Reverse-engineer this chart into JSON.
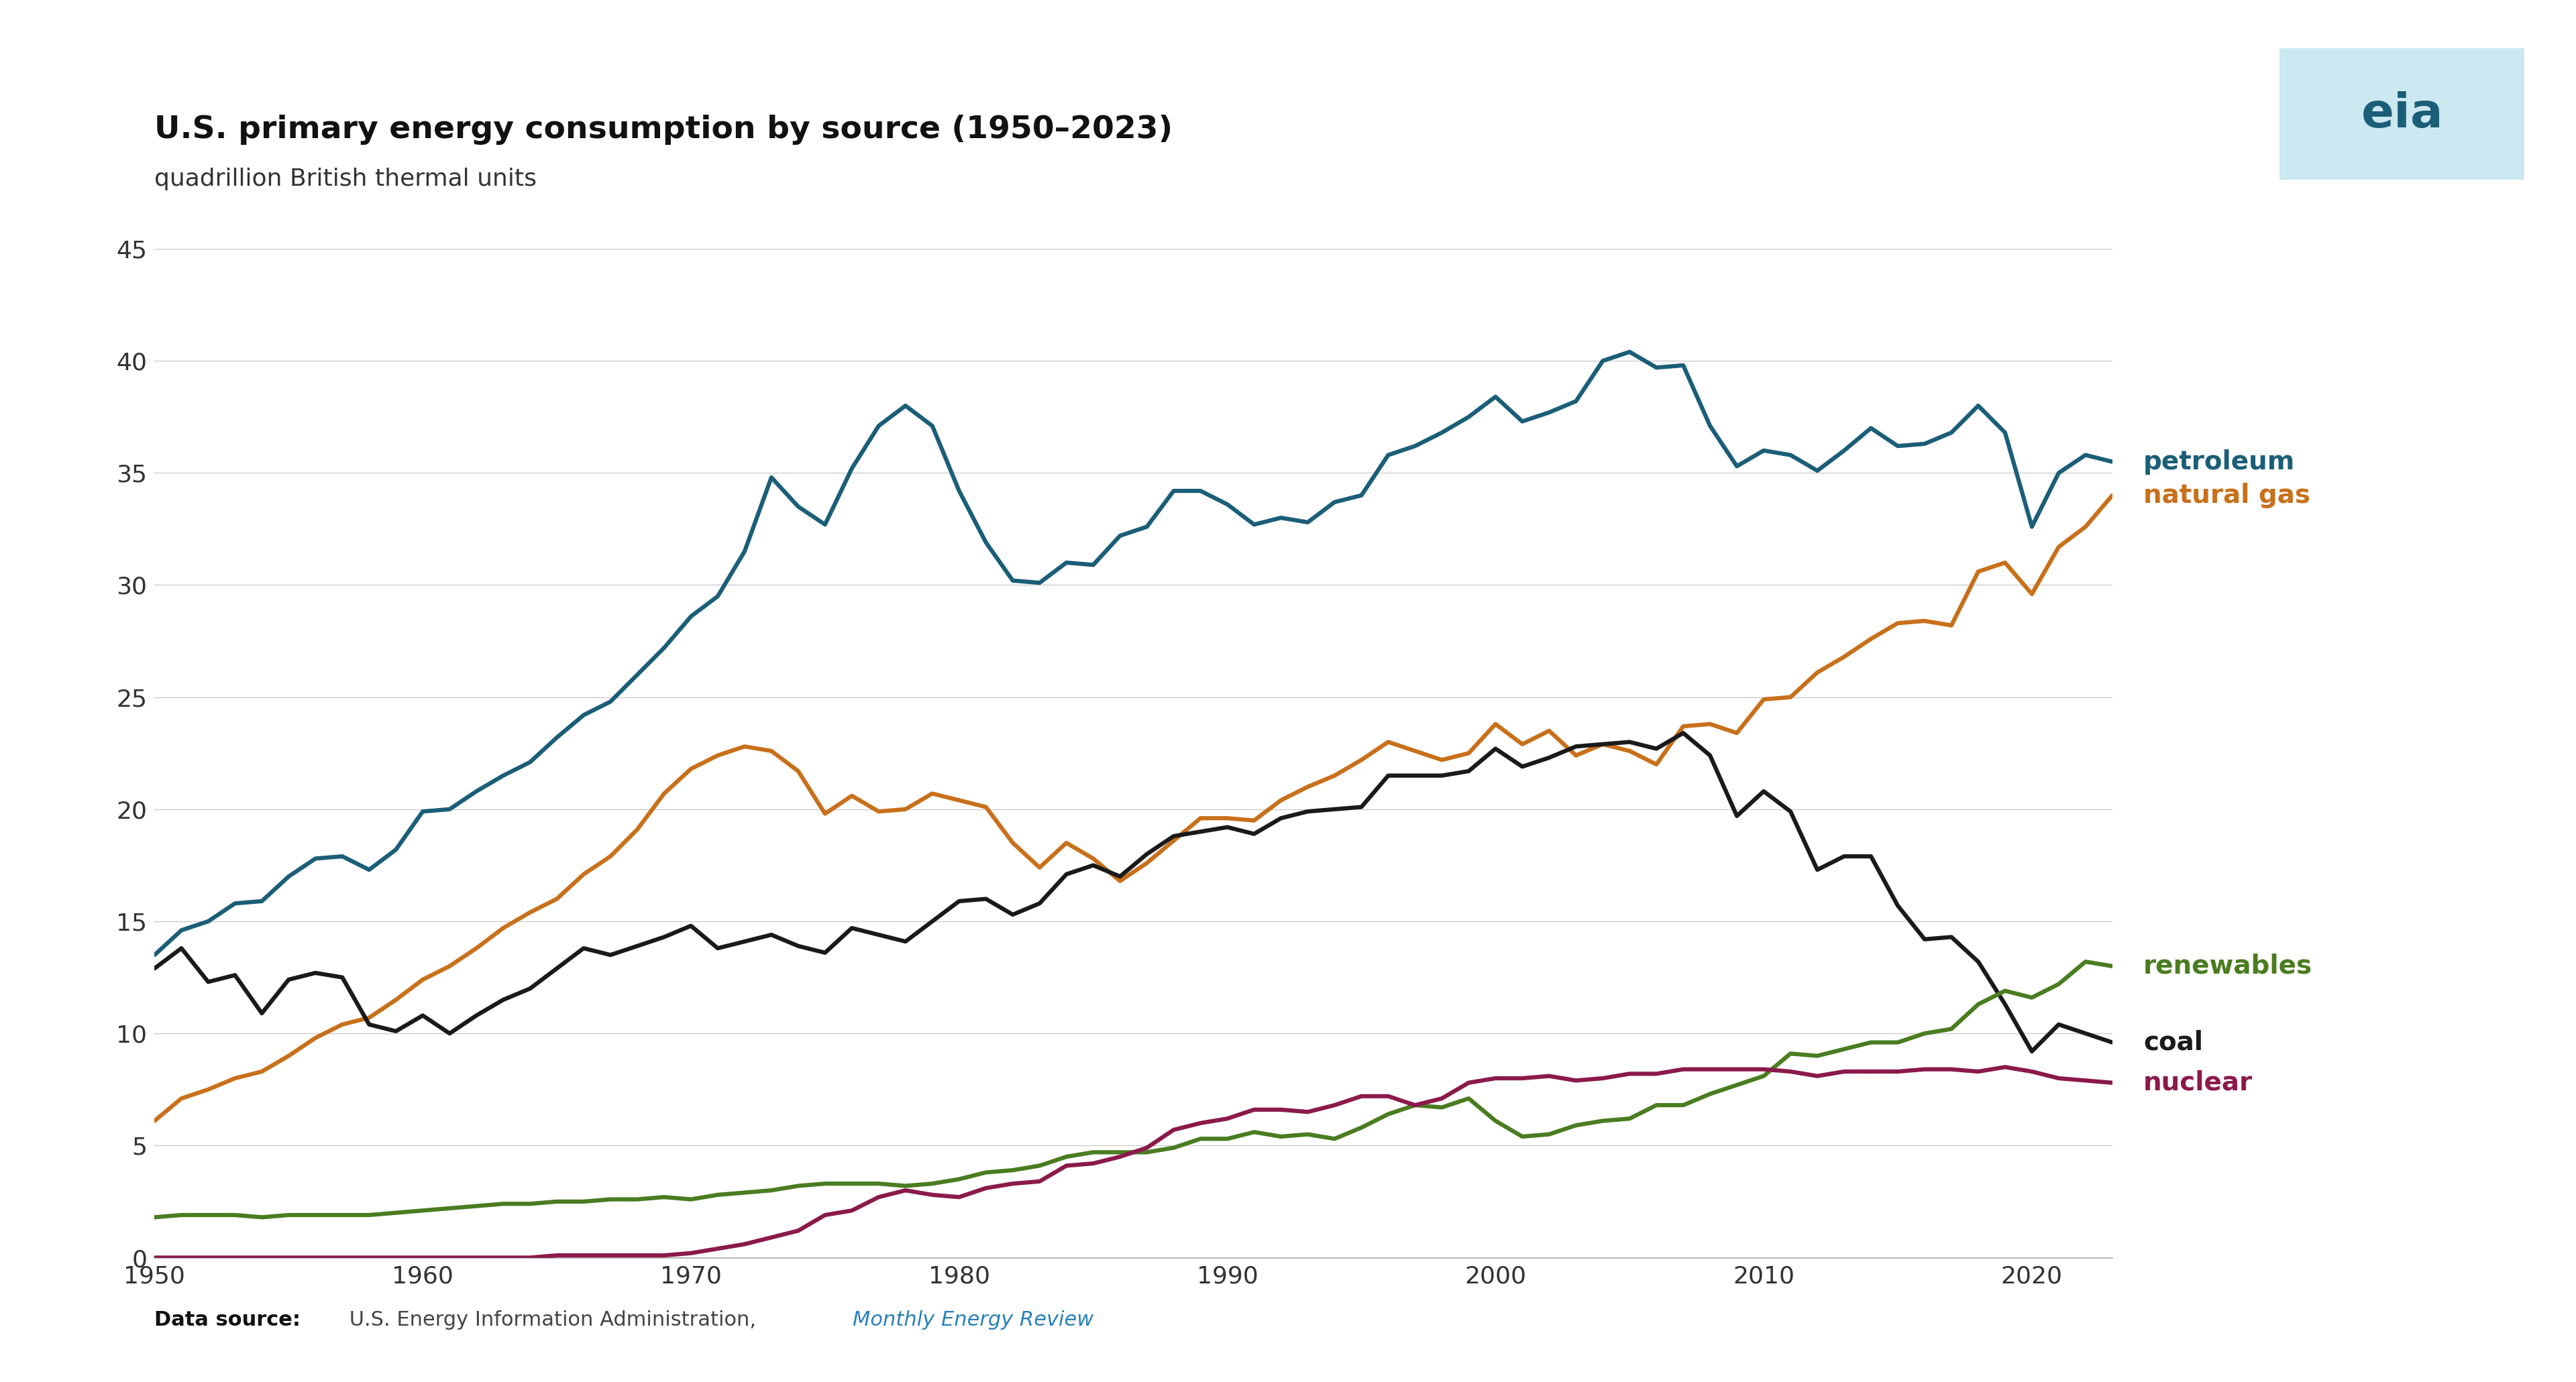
{
  "title": "U.S. primary energy consumption by source (1950–2023)",
  "subtitle": "quadrillion British thermal units",
  "ylim": [
    0,
    45
  ],
  "yticks": [
    0,
    5,
    10,
    15,
    20,
    25,
    30,
    35,
    40,
    45
  ],
  "xlim": [
    1950,
    2023
  ],
  "xticks": [
    1950,
    1960,
    1970,
    1980,
    1990,
    2000,
    2010,
    2020
  ],
  "bg_color": "#ffffff",
  "grid_color": "#cccccc",
  "colors": {
    "petroleum": "#1b5e78",
    "natural_gas": "#c8701a",
    "coal": "#1a1a1a",
    "renewables": "#4a7c20",
    "nuclear": "#8b1a4a"
  },
  "petroleum": {
    "years": [
      1950,
      1951,
      1952,
      1953,
      1954,
      1955,
      1956,
      1957,
      1958,
      1959,
      1960,
      1961,
      1962,
      1963,
      1964,
      1965,
      1966,
      1967,
      1968,
      1969,
      1970,
      1971,
      1972,
      1973,
      1974,
      1975,
      1976,
      1977,
      1978,
      1979,
      1980,
      1981,
      1982,
      1983,
      1984,
      1985,
      1986,
      1987,
      1988,
      1989,
      1990,
      1991,
      1992,
      1993,
      1994,
      1995,
      1996,
      1997,
      1998,
      1999,
      2000,
      2001,
      2002,
      2003,
      2004,
      2005,
      2006,
      2007,
      2008,
      2009,
      2010,
      2011,
      2012,
      2013,
      2014,
      2015,
      2016,
      2017,
      2018,
      2019,
      2020,
      2021,
      2022,
      2023
    ],
    "values": [
      13.5,
      14.6,
      15.0,
      15.8,
      15.9,
      17.0,
      17.8,
      17.9,
      17.3,
      18.2,
      19.9,
      20.0,
      20.8,
      21.5,
      22.1,
      23.2,
      24.2,
      24.8,
      26.0,
      27.2,
      28.6,
      29.5,
      31.5,
      34.8,
      33.5,
      32.7,
      35.2,
      37.1,
      38.0,
      37.1,
      34.2,
      31.9,
      30.2,
      30.1,
      31.0,
      30.9,
      32.2,
      32.6,
      34.2,
      34.2,
      33.6,
      32.7,
      33.0,
      32.8,
      33.7,
      34.0,
      35.8,
      36.2,
      36.8,
      37.5,
      38.4,
      37.3,
      37.7,
      38.2,
      40.0,
      40.4,
      39.7,
      39.8,
      37.1,
      35.3,
      36.0,
      35.8,
      35.1,
      36.0,
      37.0,
      36.2,
      36.3,
      36.8,
      38.0,
      36.8,
      32.6,
      35.0,
      35.8,
      35.5
    ]
  },
  "natural_gas": {
    "years": [
      1950,
      1951,
      1952,
      1953,
      1954,
      1955,
      1956,
      1957,
      1958,
      1959,
      1960,
      1961,
      1962,
      1963,
      1964,
      1965,
      1966,
      1967,
      1968,
      1969,
      1970,
      1971,
      1972,
      1973,
      1974,
      1975,
      1976,
      1977,
      1978,
      1979,
      1980,
      1981,
      1982,
      1983,
      1984,
      1985,
      1986,
      1987,
      1988,
      1989,
      1990,
      1991,
      1992,
      1993,
      1994,
      1995,
      1996,
      1997,
      1998,
      1999,
      2000,
      2001,
      2002,
      2003,
      2004,
      2005,
      2006,
      2007,
      2008,
      2009,
      2010,
      2011,
      2012,
      2013,
      2014,
      2015,
      2016,
      2017,
      2018,
      2019,
      2020,
      2021,
      2022,
      2023
    ],
    "values": [
      6.1,
      7.1,
      7.5,
      8.0,
      8.3,
      9.0,
      9.8,
      10.4,
      10.7,
      11.5,
      12.4,
      13.0,
      13.8,
      14.7,
      15.4,
      16.0,
      17.1,
      17.9,
      19.1,
      20.7,
      21.8,
      22.4,
      22.8,
      22.6,
      21.7,
      19.8,
      20.6,
      19.9,
      20.0,
      20.7,
      20.4,
      20.1,
      18.5,
      17.4,
      18.5,
      17.8,
      16.8,
      17.6,
      18.6,
      19.6,
      19.6,
      19.5,
      20.4,
      21.0,
      21.5,
      22.2,
      23.0,
      22.6,
      22.2,
      22.5,
      23.8,
      22.9,
      23.5,
      22.4,
      22.9,
      22.6,
      22.0,
      23.7,
      23.8,
      23.4,
      24.9,
      25.0,
      26.1,
      26.8,
      27.6,
      28.3,
      28.4,
      28.2,
      30.6,
      31.0,
      29.6,
      31.7,
      32.6,
      34.0
    ]
  },
  "coal": {
    "years": [
      1950,
      1951,
      1952,
      1953,
      1954,
      1955,
      1956,
      1957,
      1958,
      1959,
      1960,
      1961,
      1962,
      1963,
      1964,
      1965,
      1966,
      1967,
      1968,
      1969,
      1970,
      1971,
      1972,
      1973,
      1974,
      1975,
      1976,
      1977,
      1978,
      1979,
      1980,
      1981,
      1982,
      1983,
      1984,
      1985,
      1986,
      1987,
      1988,
      1989,
      1990,
      1991,
      1992,
      1993,
      1994,
      1995,
      1996,
      1997,
      1998,
      1999,
      2000,
      2001,
      2002,
      2003,
      2004,
      2005,
      2006,
      2007,
      2008,
      2009,
      2010,
      2011,
      2012,
      2013,
      2014,
      2015,
      2016,
      2017,
      2018,
      2019,
      2020,
      2021,
      2022,
      2023
    ],
    "values": [
      12.9,
      13.8,
      12.3,
      12.6,
      10.9,
      12.4,
      12.7,
      12.5,
      10.4,
      10.1,
      10.8,
      10.0,
      10.8,
      11.5,
      12.0,
      12.9,
      13.8,
      13.5,
      13.9,
      14.3,
      14.8,
      13.8,
      14.1,
      14.4,
      13.9,
      13.6,
      14.7,
      14.4,
      14.1,
      15.0,
      15.9,
      16.0,
      15.3,
      15.8,
      17.1,
      17.5,
      17.0,
      18.0,
      18.8,
      19.0,
      19.2,
      18.9,
      19.6,
      19.9,
      20.0,
      20.1,
      21.5,
      21.5,
      21.5,
      21.7,
      22.7,
      21.9,
      22.3,
      22.8,
      22.9,
      23.0,
      22.7,
      23.4,
      22.4,
      19.7,
      20.8,
      19.9,
      17.3,
      17.9,
      17.9,
      15.7,
      14.2,
      14.3,
      13.2,
      11.3,
      9.2,
      10.4,
      10.0,
      9.6
    ]
  },
  "renewables": {
    "years": [
      1950,
      1951,
      1952,
      1953,
      1954,
      1955,
      1956,
      1957,
      1958,
      1959,
      1960,
      1961,
      1962,
      1963,
      1964,
      1965,
      1966,
      1967,
      1968,
      1969,
      1970,
      1971,
      1972,
      1973,
      1974,
      1975,
      1976,
      1977,
      1978,
      1979,
      1980,
      1981,
      1982,
      1983,
      1984,
      1985,
      1986,
      1987,
      1988,
      1989,
      1990,
      1991,
      1992,
      1993,
      1994,
      1995,
      1996,
      1997,
      1998,
      1999,
      2000,
      2001,
      2002,
      2003,
      2004,
      2005,
      2006,
      2007,
      2008,
      2009,
      2010,
      2011,
      2012,
      2013,
      2014,
      2015,
      2016,
      2017,
      2018,
      2019,
      2020,
      2021,
      2022,
      2023
    ],
    "values": [
      1.8,
      1.9,
      1.9,
      1.9,
      1.8,
      1.9,
      1.9,
      1.9,
      1.9,
      2.0,
      2.1,
      2.2,
      2.3,
      2.4,
      2.4,
      2.5,
      2.5,
      2.6,
      2.6,
      2.7,
      2.6,
      2.8,
      2.9,
      3.0,
      3.2,
      3.3,
      3.3,
      3.3,
      3.2,
      3.3,
      3.5,
      3.8,
      3.9,
      4.1,
      4.5,
      4.7,
      4.7,
      4.7,
      4.9,
      5.3,
      5.3,
      5.6,
      5.4,
      5.5,
      5.3,
      5.8,
      6.4,
      6.8,
      6.7,
      7.1,
      6.1,
      5.4,
      5.5,
      5.9,
      6.1,
      6.2,
      6.8,
      6.8,
      7.3,
      7.7,
      8.1,
      9.1,
      9.0,
      9.3,
      9.6,
      9.6,
      10.0,
      10.2,
      11.3,
      11.9,
      11.6,
      12.2,
      13.2,
      13.0
    ]
  },
  "nuclear": {
    "years": [
      1950,
      1951,
      1952,
      1953,
      1954,
      1955,
      1956,
      1957,
      1958,
      1959,
      1960,
      1961,
      1962,
      1963,
      1964,
      1965,
      1966,
      1967,
      1968,
      1969,
      1970,
      1971,
      1972,
      1973,
      1974,
      1975,
      1976,
      1977,
      1978,
      1979,
      1980,
      1981,
      1982,
      1983,
      1984,
      1985,
      1986,
      1987,
      1988,
      1989,
      1990,
      1991,
      1992,
      1993,
      1994,
      1995,
      1996,
      1997,
      1998,
      1999,
      2000,
      2001,
      2002,
      2003,
      2004,
      2005,
      2006,
      2007,
      2008,
      2009,
      2010,
      2011,
      2012,
      2013,
      2014,
      2015,
      2016,
      2017,
      2018,
      2019,
      2020,
      2021,
      2022,
      2023
    ],
    "values": [
      0.0,
      0.0,
      0.0,
      0.0,
      0.0,
      0.0,
      0.0,
      0.0,
      0.0,
      0.0,
      0.0,
      0.0,
      0.0,
      0.0,
      0.0,
      0.1,
      0.1,
      0.1,
      0.1,
      0.1,
      0.2,
      0.4,
      0.6,
      0.9,
      1.2,
      1.9,
      2.1,
      2.7,
      3.0,
      2.8,
      2.7,
      3.1,
      3.3,
      3.4,
      4.1,
      4.2,
      4.5,
      4.9,
      5.7,
      6.0,
      6.2,
      6.6,
      6.6,
      6.5,
      6.8,
      7.2,
      7.2,
      6.8,
      7.1,
      7.8,
      8.0,
      8.0,
      8.1,
      7.9,
      8.0,
      8.2,
      8.2,
      8.4,
      8.4,
      8.4,
      8.4,
      8.3,
      8.1,
      8.3,
      8.3,
      8.3,
      8.4,
      8.4,
      8.3,
      8.5,
      8.3,
      8.0,
      7.9,
      7.8
    ]
  },
  "legend_items": [
    {
      "label": "petroleum",
      "key": "petroleum",
      "y_data": 35.5
    },
    {
      "label": "natural gas",
      "key": "natural_gas",
      "y_data": 34.0
    },
    {
      "label": "renewables",
      "key": "renewables",
      "y_data": 13.0
    },
    {
      "label": "coal",
      "key": "coal",
      "y_data": 9.6
    },
    {
      "label": "nuclear",
      "key": "nuclear",
      "y_data": 7.8
    }
  ],
  "datasource_bold": "Data source:",
  "datasource_text": " U.S. Energy Information Administration, ",
  "datasource_link": "Monthly Energy Review",
  "title_fontsize": 34,
  "subtitle_fontsize": 26,
  "tick_fontsize": 26,
  "legend_fontsize": 28,
  "source_fontsize": 22,
  "line_width": 4.5
}
